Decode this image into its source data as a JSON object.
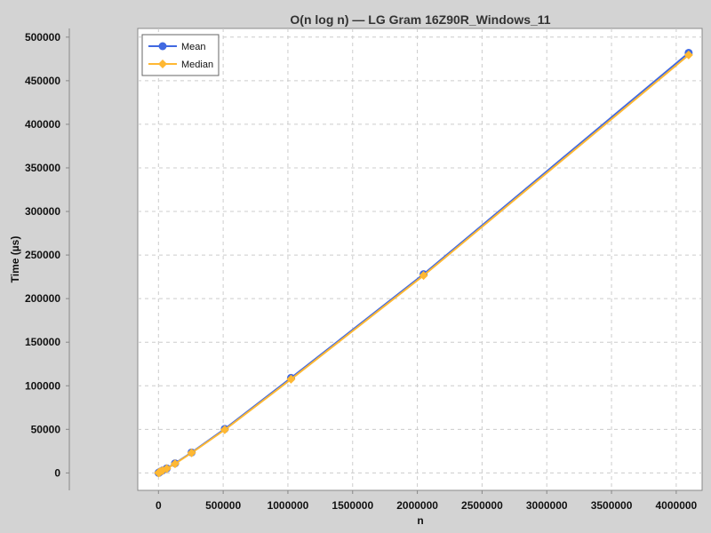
{
  "chart_data": {
    "type": "line",
    "title": "O(n log n) — LG Gram 16Z90R_Windows_11",
    "xlabel": "n",
    "ylabel": "Time (µs)",
    "xlim": [
      -160000,
      4200000
    ],
    "ylim": [
      -20000,
      510000
    ],
    "x_ticks": [
      0,
      500000,
      1000000,
      1500000,
      2000000,
      2500000,
      3000000,
      3500000,
      4000000
    ],
    "x_tick_labels": [
      "0",
      "500000",
      "1000000",
      "1500000",
      "2000000",
      "2500000",
      "3000000",
      "3500000",
      "4000000"
    ],
    "y_ticks": [
      0,
      50000,
      100000,
      150000,
      200000,
      250000,
      300000,
      350000,
      400000,
      450000,
      500000
    ],
    "y_tick_labels": [
      "0",
      "50000",
      "100000",
      "150000",
      "200000",
      "250000",
      "300000",
      "350000",
      "400000",
      "450000",
      "500000"
    ],
    "grid": true,
    "legend_position": "top-left",
    "x": [
      1000,
      2000,
      4000,
      8000,
      16000,
      32000,
      64000,
      128000,
      256000,
      512000,
      1024000,
      2048000,
      4096000
    ],
    "series": [
      {
        "name": "Mean",
        "color": "#4169e1",
        "marker": "circle",
        "values": [
          100,
          200,
          400,
          800,
          1600,
          2800,
          5200,
          11000,
          23500,
          50500,
          109000,
          228000,
          482000
        ]
      },
      {
        "name": "Median",
        "color": "#ffb833",
        "marker": "diamond",
        "values": [
          90,
          180,
          370,
          760,
          1500,
          2700,
          5000,
          10500,
          23000,
          49500,
          107500,
          226500,
          479500
        ]
      }
    ]
  }
}
